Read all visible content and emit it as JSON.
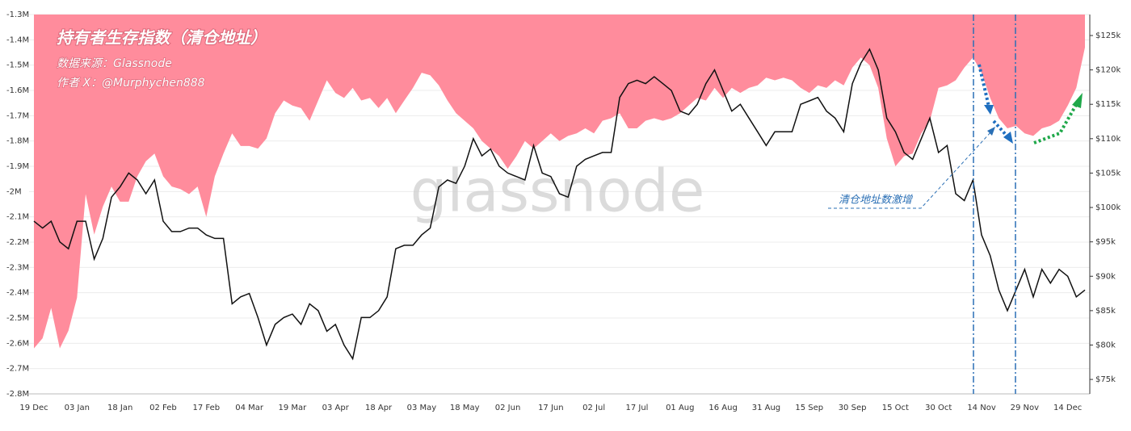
{
  "title": "持有者生存指数（清仓地址）",
  "source": "数据来源：Glassnode",
  "author": "作者 X：@Murphychen888",
  "watermark": "glassnode",
  "annotation": "清仓地址数激增",
  "chart_data": {
    "type": "area-line",
    "grid": true,
    "categories": [
      "19 Dec",
      null,
      null,
      null,
      null,
      "03 Jan",
      null,
      null,
      null,
      null,
      "18 Jan",
      null,
      null,
      null,
      null,
      "02 Feb",
      null,
      null,
      null,
      null,
      "17 Feb",
      null,
      null,
      null,
      null,
      "04 Mar",
      null,
      null,
      null,
      null,
      "19 Mar",
      null,
      null,
      null,
      null,
      "03 Apr",
      null,
      null,
      null,
      null,
      "18 Apr",
      null,
      null,
      null,
      null,
      "03 May",
      null,
      null,
      null,
      null,
      "18 May",
      null,
      null,
      null,
      null,
      "02 Jun",
      null,
      null,
      null,
      null,
      "17 Jun",
      null,
      null,
      null,
      null,
      "02 Jul",
      null,
      null,
      null,
      null,
      "17 Jul",
      null,
      null,
      null,
      null,
      "01 Aug",
      null,
      null,
      null,
      null,
      "16 Aug",
      null,
      null,
      null,
      null,
      "31 Aug",
      null,
      null,
      null,
      null,
      "15 Sep",
      null,
      null,
      null,
      null,
      "30 Sep",
      null,
      null,
      null,
      null,
      "15 Oct",
      null,
      null,
      null,
      null,
      "30 Oct",
      null,
      null,
      null,
      null,
      "14 Nov",
      null,
      null,
      null,
      null,
      "29 Nov",
      null,
      null,
      null,
      null,
      "14 Dec",
      null,
      null
    ],
    "ylim": [
      -2800000,
      -1300000
    ],
    "yticks": [
      {
        "value": -1300000,
        "label": "-1.3M"
      },
      {
        "value": -1400000,
        "label": "-1.4M"
      },
      {
        "value": -1500000,
        "label": "-1.5M"
      },
      {
        "value": -1600000,
        "label": "-1.6M"
      },
      {
        "value": -1700000,
        "label": "-1.7M"
      },
      {
        "value": -1800000,
        "label": "-1.8M"
      },
      {
        "value": -1900000,
        "label": "-1.9M"
      },
      {
        "value": -2000000,
        "label": "-2M"
      },
      {
        "value": -2100000,
        "label": "-2.1M"
      },
      {
        "value": -2200000,
        "label": "-2.2M"
      },
      {
        "value": -2300000,
        "label": "-2.3M"
      },
      {
        "value": -2400000,
        "label": "-2.4M"
      },
      {
        "value": -2500000,
        "label": "-2.5M"
      },
      {
        "value": -2600000,
        "label": "-2.6M"
      },
      {
        "value": -2700000,
        "label": "-2.7M"
      },
      {
        "value": -2800000,
        "label": "-2.8M"
      }
    ],
    "y2lim": [
      72900,
      128050
    ],
    "y2ticks": [
      {
        "value": 75000,
        "label": "$75k"
      },
      {
        "value": 80000,
        "label": "$80k"
      },
      {
        "value": 85000,
        "label": "$85k"
      },
      {
        "value": 90000,
        "label": "$90k"
      },
      {
        "value": 95000,
        "label": "$95k"
      },
      {
        "value": 100000,
        "label": "$100k"
      },
      {
        "value": 105000,
        "label": "$105k"
      },
      {
        "value": 110000,
        "label": "$110k"
      },
      {
        "value": 115000,
        "label": "$115k"
      },
      {
        "value": 120000,
        "label": "$120k"
      },
      {
        "value": 125000,
        "label": "$125k"
      }
    ],
    "series": [
      {
        "color": "#ff8c9c",
        "values": [
          -2620000,
          -2580000,
          -2460000,
          -2620000,
          -2550000,
          -2420000,
          -2010000,
          -2170000,
          -2060000,
          -1980000,
          -2040000,
          -2040000,
          -1940000,
          -1880000,
          -1850000,
          -1940000,
          -1980000,
          -1990000,
          -2010000,
          -1980000,
          -2100000,
          -1940000,
          -1850000,
          -1770000,
          -1820000,
          -1820000,
          -1830000,
          -1790000,
          -1690000,
          -1640000,
          -1660000,
          -1670000,
          -1720000,
          -1640000,
          -1560000,
          -1610000,
          -1630000,
          -1590000,
          -1640000,
          -1630000,
          -1670000,
          -1630000,
          -1690000,
          -1640000,
          -1590000,
          -1530000,
          -1540000,
          -1580000,
          -1640000,
          -1690000,
          -1720000,
          -1750000,
          -1800000,
          -1830000,
          -1860000,
          -1910000,
          -1860000,
          -1800000,
          -1830000,
          -1800000,
          -1770000,
          -1800000,
          -1780000,
          -1770000,
          -1750000,
          -1770000,
          -1720000,
          -1710000,
          -1690000,
          -1750000,
          -1750000,
          -1720000,
          -1710000,
          -1720000,
          -1710000,
          -1690000,
          -1660000,
          -1630000,
          -1640000,
          -1590000,
          -1630000,
          -1590000,
          -1610000,
          -1590000,
          -1580000,
          -1550000,
          -1560000,
          -1550000,
          -1560000,
          -1590000,
          -1610000,
          -1580000,
          -1590000,
          -1560000,
          -1580000,
          -1510000,
          -1470000,
          -1500000,
          -1590000,
          -1790000,
          -1900000,
          -1860000,
          -1850000,
          -1770000,
          -1720000,
          -1590000,
          -1580000,
          -1560000,
          -1510000,
          -1470000,
          -1530000,
          -1630000,
          -1710000,
          -1750000,
          -1740000,
          -1770000,
          -1780000,
          -1750000,
          -1740000,
          -1720000,
          -1660000,
          -1590000,
          -1430000
        ]
      },
      {
        "color": "#111111",
        "axis": "y2",
        "values": [
          98000,
          97000,
          98000,
          95000,
          94000,
          98000,
          98000,
          92500,
          95500,
          101500,
          103000,
          105000,
          104000,
          102000,
          104000,
          98000,
          96500,
          96500,
          97000,
          97000,
          96000,
          95500,
          95500,
          86000,
          87000,
          87500,
          84000,
          80000,
          83000,
          84000,
          84500,
          83000,
          86000,
          85000,
          82000,
          83000,
          80000,
          78000,
          84000,
          84000,
          85000,
          87000,
          94000,
          94500,
          94500,
          96000,
          97000,
          103000,
          104000,
          103500,
          106000,
          110000,
          107500,
          108500,
          106000,
          105000,
          104500,
          104000,
          109000,
          105000,
          104500,
          102000,
          101500,
          106000,
          107000,
          107500,
          108000,
          108000,
          116000,
          118000,
          118500,
          118000,
          119000,
          118000,
          117000,
          114000,
          113500,
          115000,
          118000,
          120000,
          117000,
          114000,
          115000,
          113000,
          111000,
          109000,
          111000,
          111000,
          111000,
          115000,
          115500,
          116000,
          114000,
          113000,
          111000,
          118000,
          121000,
          123000,
          120000,
          113000,
          111000,
          108000,
          107000,
          110000,
          113000,
          108000,
          109000,
          102000,
          101000,
          104000,
          96000,
          93000,
          88000,
          85000,
          88000,
          91000,
          87000,
          91000,
          89000,
          91000,
          90000,
          87000,
          88000
        ]
      }
    ]
  }
}
